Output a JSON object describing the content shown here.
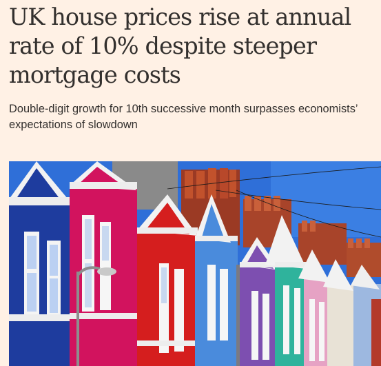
{
  "article": {
    "headline": "UK house prices rise at annual rate of 10% despite steeper mortgage costs",
    "standfirst": "Double-digit growth for 10th successive month surpasses economists’ expectations of slowdown"
  },
  "image": {
    "subject": "colourful-terraced-houses",
    "colors": {
      "sky": "#2F6FD8",
      "navy_house": "#1E3C9E",
      "magenta_house": "#D2135E",
      "red_house": "#D51E1E",
      "blue_house": "#4A8BDC",
      "purple_house": "#7D4FB0",
      "teal_house": "#2FB39C",
      "pink_house": "#E6A2C4",
      "brick": "#9B3A24"
    }
  }
}
